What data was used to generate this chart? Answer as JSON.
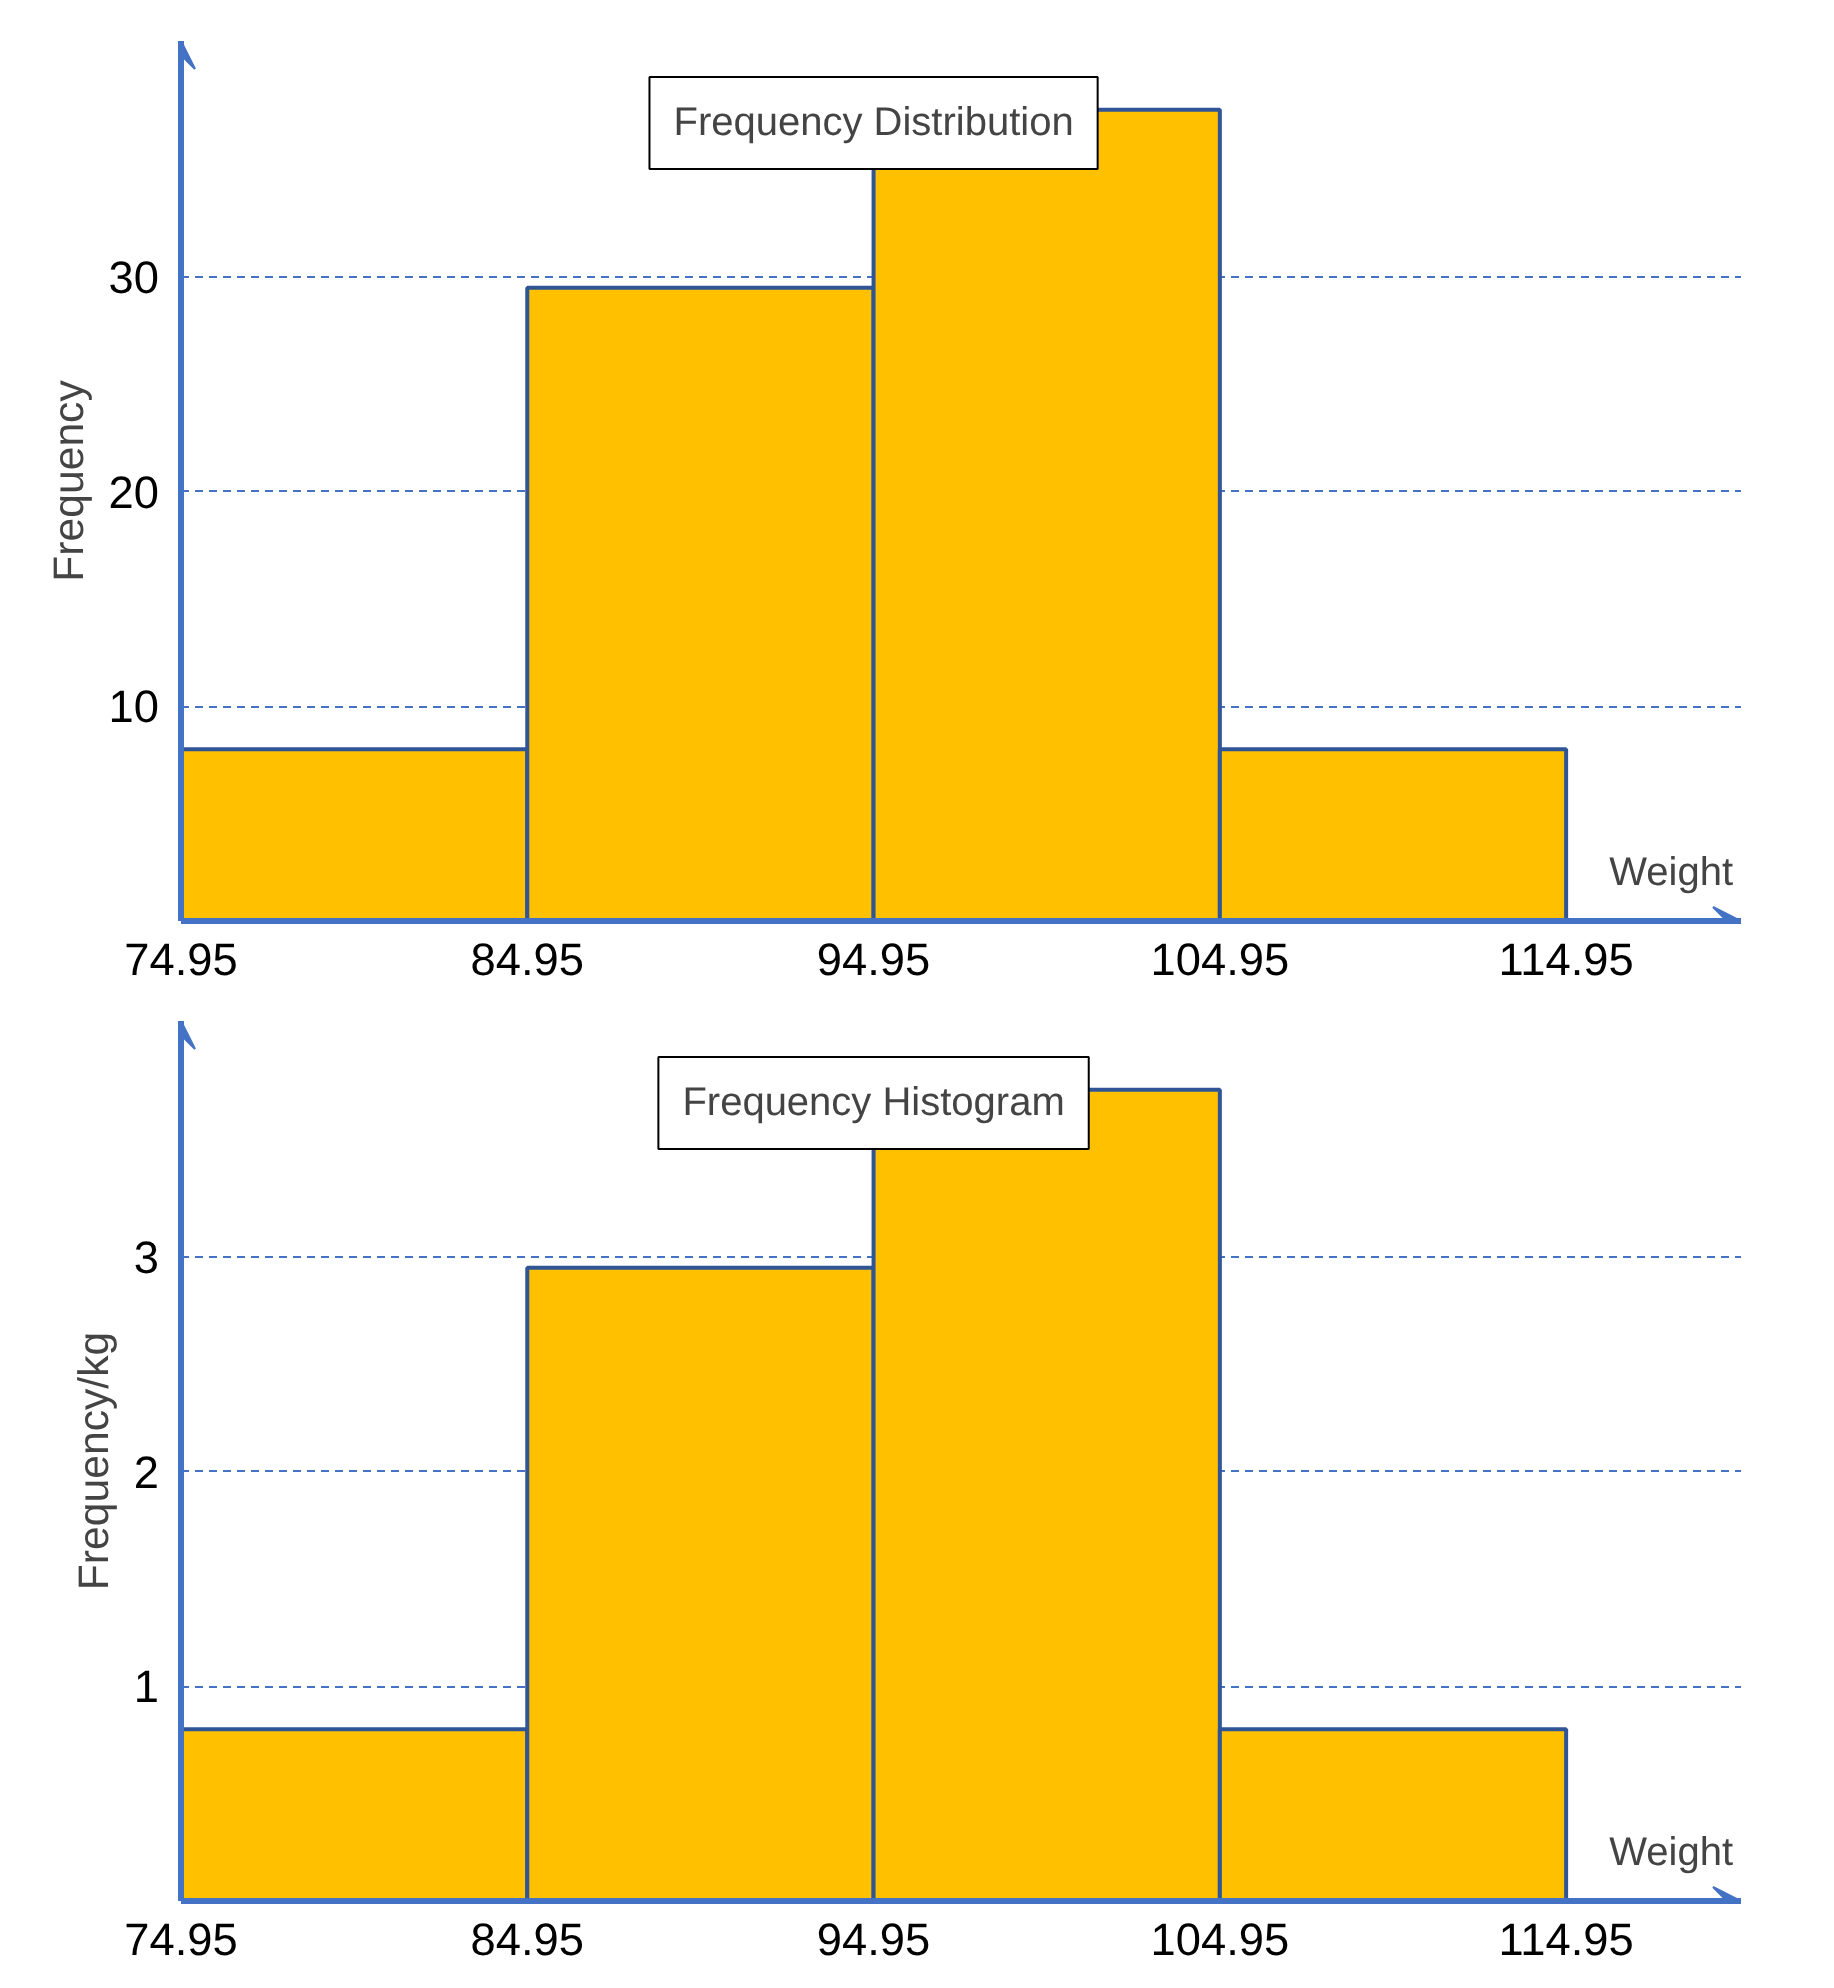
{
  "chart_data": [
    {
      "type": "histogram",
      "title": "Frequency Distribution",
      "xlabel": "Weight",
      "ylabel": "Frequency",
      "bins": [
        74.95,
        84.95,
        94.95,
        104.95,
        114.95
      ],
      "values": [
        8,
        29.5,
        37.8,
        8
      ],
      "color": "#ffc000",
      "xlim": [
        74.95,
        120
      ],
      "ylim": [
        0,
        41
      ],
      "xticks": [
        74.95,
        84.95,
        94.95,
        104.95,
        114.95
      ],
      "yticks": [
        10,
        20,
        30
      ],
      "grid": "y"
    },
    {
      "type": "histogram",
      "title": "Frequency Histogram",
      "xlabel": "Weight",
      "ylabel": "Frequency/kg",
      "bins": [
        74.95,
        84.95,
        94.95,
        104.95,
        114.95
      ],
      "values": [
        0.8,
        2.95,
        3.78,
        0.8
      ],
      "color": "#ffc000",
      "xlim": [
        74.95,
        120
      ],
      "ylim": [
        0,
        4.1
      ],
      "xticks": [
        74.95,
        84.95,
        94.95,
        104.95,
        114.95
      ],
      "yticks": [
        1,
        2,
        3
      ],
      "grid": "y"
    }
  ]
}
